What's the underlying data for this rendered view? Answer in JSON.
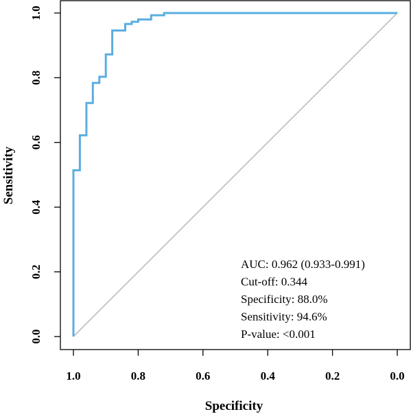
{
  "chart_data": {
    "type": "line",
    "xlabel": "Specificity",
    "ylabel": "Sensitivity",
    "x_reversed": true,
    "xlim": [
      0.0,
      1.0
    ],
    "ylim": [
      0.0,
      1.0
    ],
    "x_ticks": [
      "1.0",
      "0.8",
      "0.6",
      "0.4",
      "0.2",
      "0.0"
    ],
    "y_ticks": [
      "0.0",
      "0.2",
      "0.4",
      "0.6",
      "0.8",
      "1.0"
    ],
    "grid": false,
    "reference_line": {
      "from": [
        1.0,
        0.0
      ],
      "to": [
        0.0,
        1.0
      ],
      "color": "#b4b4b4"
    },
    "series": [
      {
        "color": "#5aaee0",
        "specificity": [
          1.0,
          1.0,
          0.98,
          0.98,
          0.96,
          0.96,
          0.94,
          0.94,
          0.92,
          0.92,
          0.9,
          0.9,
          0.88,
          0.88,
          0.84,
          0.84,
          0.82,
          0.82,
          0.8,
          0.8,
          0.76,
          0.76,
          0.72,
          0.72,
          0.0
        ],
        "sensitivity": [
          0.0,
          0.514,
          0.514,
          0.622,
          0.622,
          0.722,
          0.722,
          0.784,
          0.784,
          0.803,
          0.803,
          0.872,
          0.872,
          0.946,
          0.946,
          0.966,
          0.966,
          0.973,
          0.973,
          0.98,
          0.98,
          0.993,
          0.993,
          1.0,
          1.0
        ]
      }
    ],
    "annotations": [
      "AUC: 0.962 (0.933-0.991)",
      "Cut-off: 0.344",
      "Specificity: 88.0%",
      "Sensitivity: 94.6%",
      "P-value: <0.001"
    ]
  }
}
